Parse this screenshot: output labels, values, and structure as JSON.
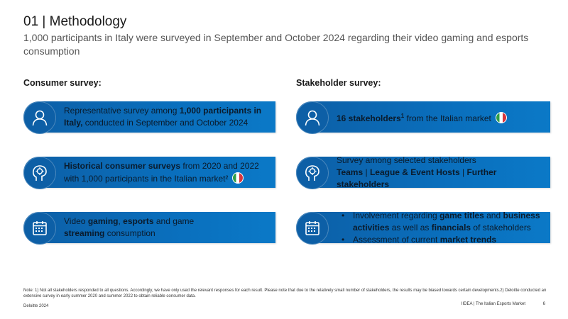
{
  "header": {
    "title": "01 | Methodology",
    "subtitle": "1,000 participants in Italy were surveyed in September and October 2024 regarding their video gaming and esports consumption"
  },
  "consumer": {
    "heading": "Consumer survey:",
    "card1": {
      "icon": "person-icon",
      "t1": "Representative survey among ",
      "b1": "1,000 participants in Italy,",
      "t2": " conducted in September and October 2024"
    },
    "card2": {
      "icon": "head-icon",
      "b1": "Historical consumer surveys",
      "t1": " from 2020 and 2022 with 1,000 participants in the Italian market²"
    },
    "card3": {
      "icon": "calendar-icon",
      "t1": "Video ",
      "b1": "gaming",
      "t2": ", ",
      "b2": "esports",
      "t3": " and game ",
      "b3": "streaming",
      "t4": " consumption"
    }
  },
  "stakeholder": {
    "heading": "Stakeholder survey:",
    "card1": {
      "icon": "person-icon",
      "b1": "16 stakeholders",
      "sup": "1",
      "t1": " from the Italian market"
    },
    "card2": {
      "icon": "head-icon",
      "t1": "Survey among selected stakeholders",
      "b1": "Teams",
      "sep1": " | ",
      "b2": "League & Event Hosts",
      "sep2": " | ",
      "b3": "Further stakeholders"
    },
    "card3": {
      "icon": "calendar-icon",
      "bullet1": {
        "t1": "Involvement regarding ",
        "b1": "game titles",
        "t2": " and ",
        "b2": "business activities",
        "t3": " as well as ",
        "b3": "financials",
        "t4": " of stakeholders"
      },
      "bullet2": {
        "t1": "Assessment of current ",
        "b1": "market trends"
      }
    }
  },
  "footer": {
    "note": "Note: 1) Not all stakeholders responded to all questions. Accordingly, we have only used the relevant responses for each result. Please note that due to the relatively small number of stakeholders, the results may be biased towards certain developments.2) Deloitte conducted an extensive survey in early summer 2020 and summer 2022 to obtain reliable consumer data.",
    "source": "Deloitte 2024",
    "doc": "IIDEA | The Italian Esports Market",
    "page": "6"
  },
  "colors": {
    "card": "#0a6fbd",
    "card_dark": "#0d5fa6",
    "flag": [
      "#2e9e46",
      "#ffffff",
      "#d8353c"
    ]
  }
}
